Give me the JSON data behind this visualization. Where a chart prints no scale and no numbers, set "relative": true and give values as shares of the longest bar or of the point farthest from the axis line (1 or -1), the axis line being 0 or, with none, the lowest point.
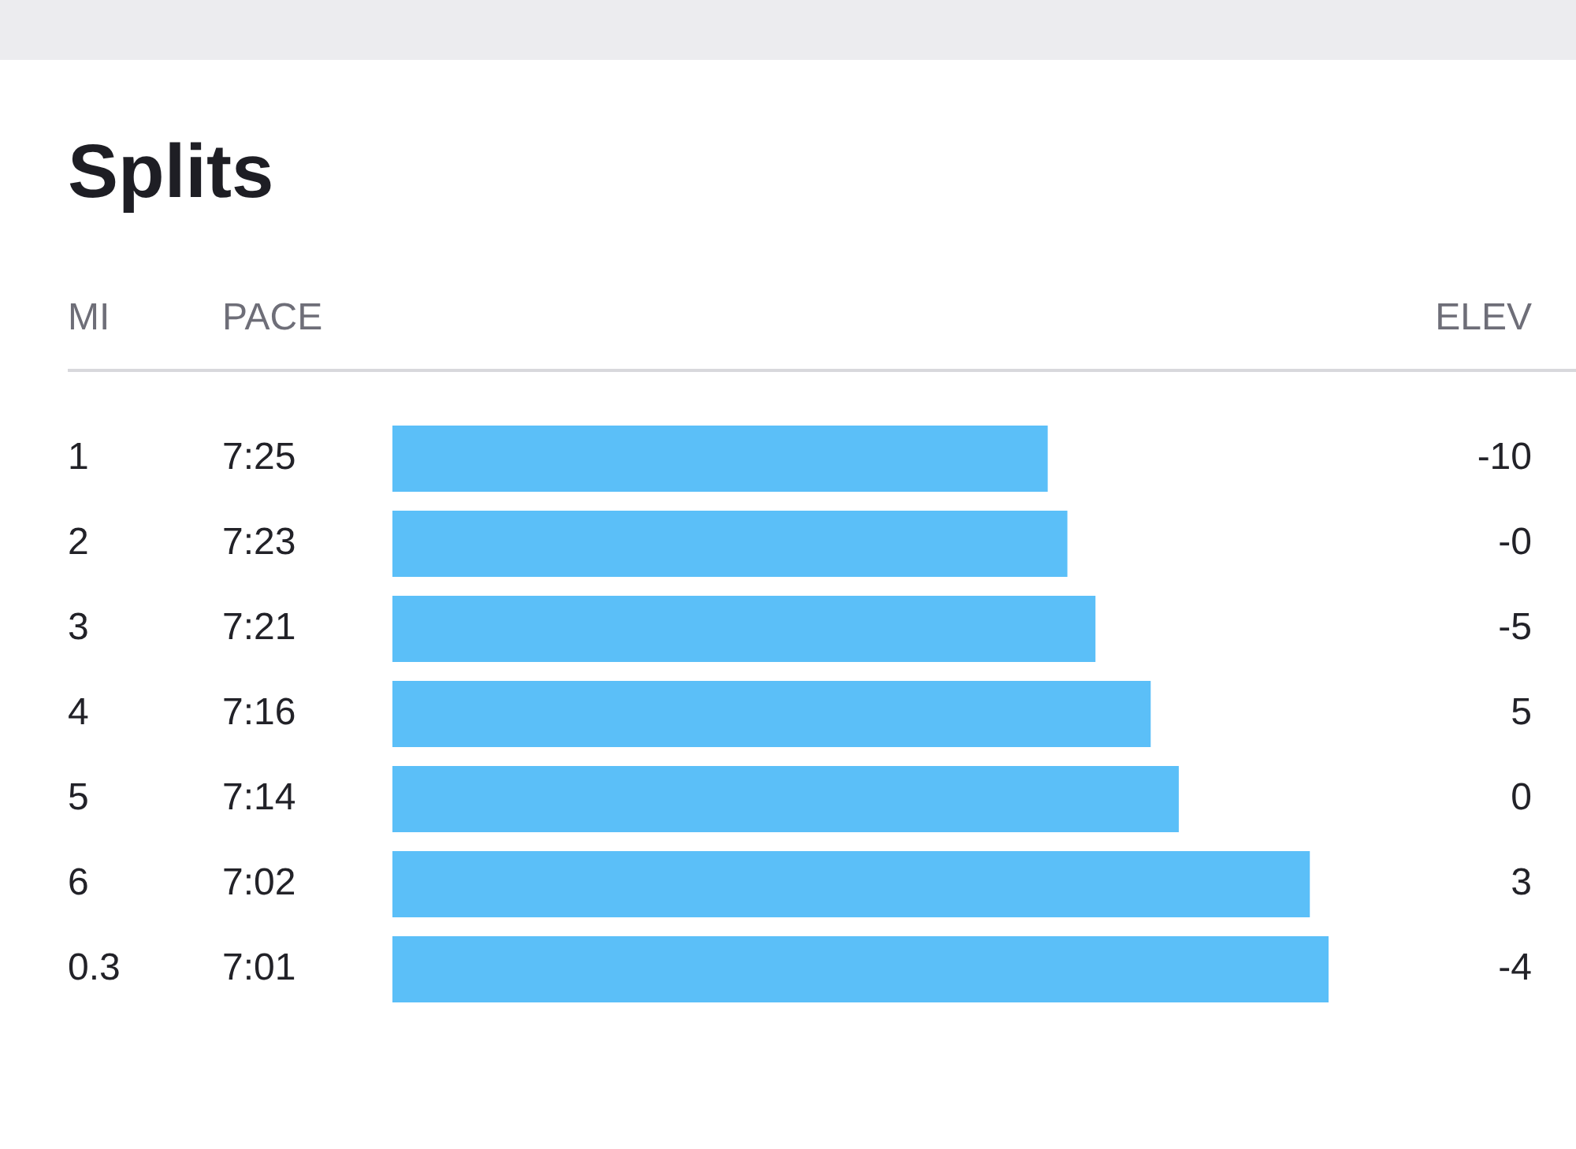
{
  "chart_data": {
    "type": "bar",
    "orientation": "horizontal",
    "relative": true,
    "title": "Splits",
    "ylabel": "MI",
    "xlabel": "PACE",
    "y2label": "ELEV",
    "categories": [
      "1",
      "2",
      "3",
      "4",
      "5",
      "6",
      "0.3"
    ],
    "values": [
      0.7,
      0.721,
      0.751,
      0.81,
      0.84,
      0.98,
      1
    ],
    "color": "#5bbff8",
    "legend": false,
    "annotations": [
      "7:25",
      "7:23",
      "7:21",
      "7:16",
      "7:14",
      "7:02",
      "7:01",
      "-10",
      "-0",
      "-5",
      "5",
      "0",
      "3",
      "-4"
    ]
  }
}
